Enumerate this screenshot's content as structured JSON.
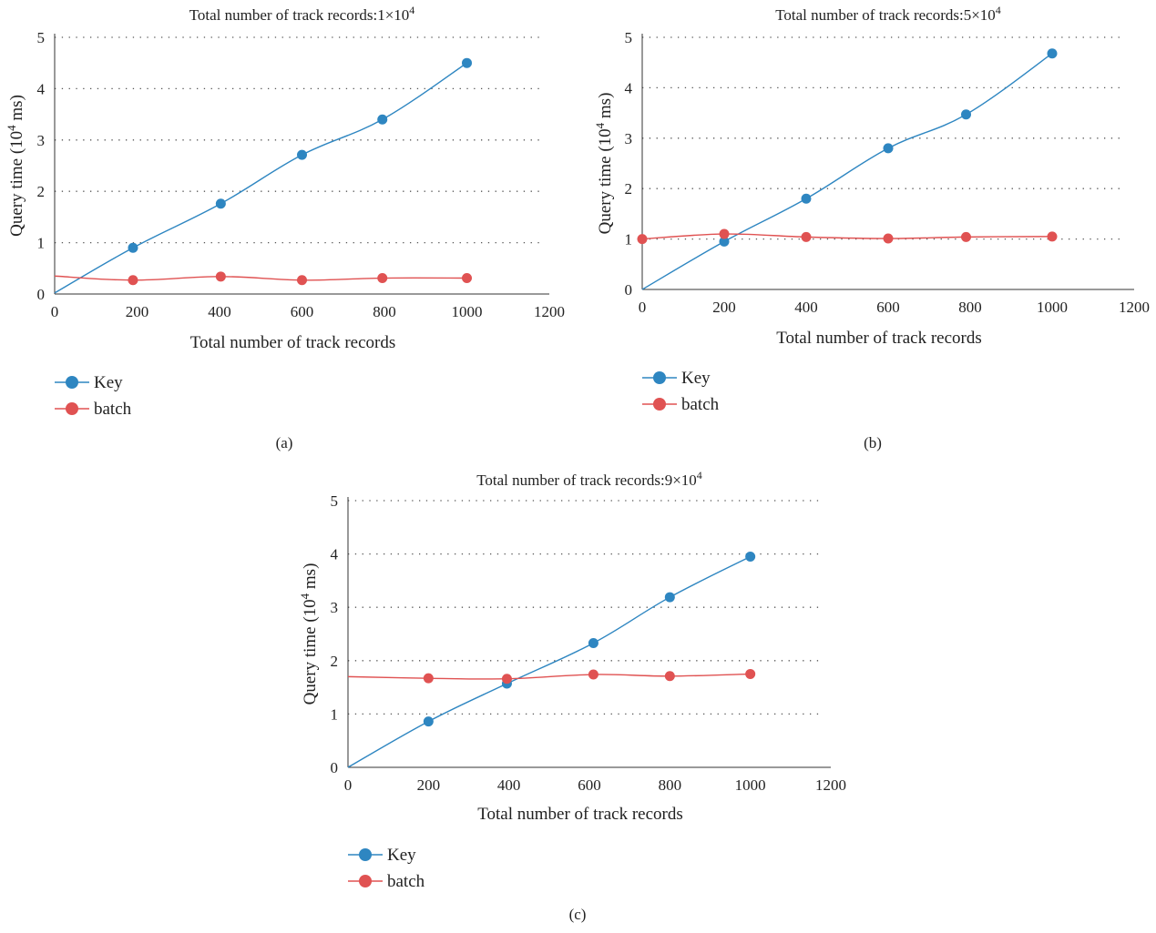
{
  "colors": {
    "key": "#2E86C1",
    "batch": "#E05252",
    "grid": "#555555",
    "axis": "#333333"
  },
  "chart_data": [
    {
      "type": "line",
      "panel_label": "(a)",
      "title": {
        "prefix": "Total number of track records:1×10",
        "sup": "4"
      },
      "xlabel": "Total number of track records",
      "ylabel": {
        "prefix": "Query time (10",
        "sup": "4",
        "suffix": " ms)"
      },
      "xlim": [
        0,
        1200
      ],
      "ylim": [
        0,
        5
      ],
      "xticks": [
        0,
        200,
        400,
        600,
        800,
        1000,
        1200
      ],
      "yticks": [
        0,
        1,
        2,
        3,
        4,
        5
      ],
      "grid": "horizontal-dotted",
      "legend_position": "bottom-left",
      "series": [
        {
          "name": "Key",
          "color": "#2E86C1",
          "points": [
            [
              0,
              0.02
            ],
            [
              190,
              0.9
            ],
            [
              403,
              1.76
            ],
            [
              600,
              2.71
            ],
            [
              795,
              3.4
            ],
            [
              1000,
              4.5
            ]
          ],
          "markers": [
            1,
            2,
            3,
            4,
            5
          ]
        },
        {
          "name": "batch",
          "color": "#E05252",
          "points": [
            [
              0,
              0.35
            ],
            [
              190,
              0.27
            ],
            [
              403,
              0.34
            ],
            [
              600,
              0.27
            ],
            [
              795,
              0.31
            ],
            [
              1000,
              0.31
            ]
          ],
          "markers": [
            1,
            2,
            3,
            4,
            5
          ]
        }
      ]
    },
    {
      "type": "line",
      "panel_label": "(b)",
      "title": {
        "prefix": "Total number of track records:5×10",
        "sup": "4"
      },
      "xlabel": "Total number of track records",
      "ylabel": {
        "prefix": "Query time (10",
        "sup": "4",
        "suffix": " ms)"
      },
      "xlim": [
        0,
        1200
      ],
      "ylim": [
        0,
        5
      ],
      "xticks": [
        0,
        200,
        400,
        600,
        800,
        1000,
        1200
      ],
      "yticks": [
        0,
        1,
        2,
        3,
        4,
        5
      ],
      "grid": "horizontal-dotted",
      "legend_position": "bottom-left",
      "series": [
        {
          "name": "Key",
          "color": "#2E86C1",
          "points": [
            [
              0,
              0.0
            ],
            [
              200,
              0.95
            ],
            [
              400,
              1.8
            ],
            [
              600,
              2.8
            ],
            [
              790,
              3.47
            ],
            [
              1000,
              4.68
            ]
          ],
          "markers": [
            1,
            2,
            3,
            4,
            5
          ]
        },
        {
          "name": "batch",
          "color": "#E05252",
          "points": [
            [
              0,
              1.0
            ],
            [
              200,
              1.1
            ],
            [
              400,
              1.04
            ],
            [
              600,
              1.01
            ],
            [
              790,
              1.04
            ],
            [
              1000,
              1.05
            ]
          ],
          "markers": [
            0,
            1,
            2,
            3,
            4,
            5
          ]
        }
      ]
    },
    {
      "type": "line",
      "panel_label": "(c)",
      "title": {
        "prefix": "Total number of track records:9×10",
        "sup": "4"
      },
      "xlabel": "Total number of track records",
      "ylabel": {
        "prefix": "Query time (10",
        "sup": "4",
        "suffix": " ms)"
      },
      "xlim": [
        0,
        1200
      ],
      "ylim": [
        0,
        5
      ],
      "xticks": [
        0,
        200,
        400,
        600,
        800,
        1000,
        1200
      ],
      "yticks": [
        0,
        1,
        2,
        3,
        4,
        5
      ],
      "grid": "horizontal-dotted",
      "legend_position": "bottom-left",
      "series": [
        {
          "name": "Key",
          "color": "#2E86C1",
          "points": [
            [
              0,
              0.0
            ],
            [
              200,
              0.86
            ],
            [
              395,
              1.57
            ],
            [
              610,
              2.33
            ],
            [
              800,
              3.19
            ],
            [
              1000,
              3.95
            ]
          ],
          "markers": [
            1,
            2,
            3,
            4,
            5
          ]
        },
        {
          "name": "batch",
          "color": "#E05252",
          "points": [
            [
              0,
              1.7
            ],
            [
              200,
              1.67
            ],
            [
              395,
              1.66
            ],
            [
              610,
              1.74
            ],
            [
              800,
              1.71
            ],
            [
              1000,
              1.75
            ]
          ],
          "markers": [
            1,
            2,
            3,
            4,
            5
          ]
        }
      ]
    }
  ]
}
